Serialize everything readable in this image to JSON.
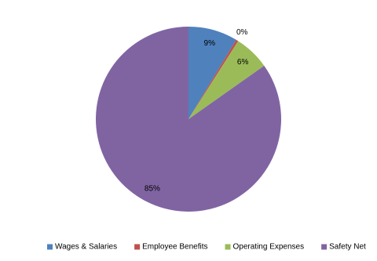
{
  "chart_data": {
    "type": "pie",
    "categories": [
      "Wages & Salaries",
      "Employee Benefits",
      "Operating Expenses",
      "Safety Net"
    ],
    "values": [
      8.6,
      0.4,
      6.2,
      84.8
    ],
    "value_labels": [
      "9%",
      "0%",
      "6%",
      "85%"
    ],
    "colors": [
      "#4f81bd",
      "#c0504d",
      "#9bbb59",
      "#8064a2"
    ],
    "legend": "bottom"
  }
}
